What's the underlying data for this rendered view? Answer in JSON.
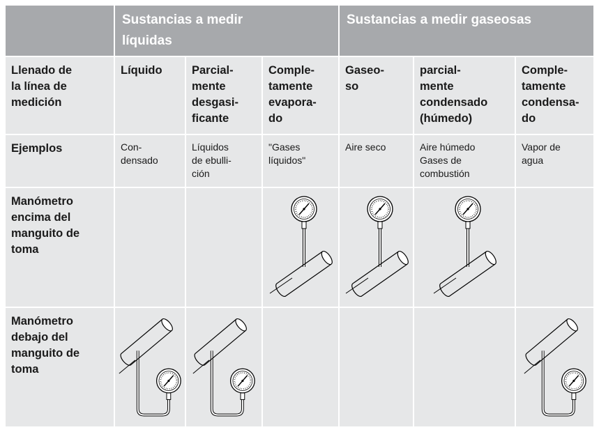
{
  "table": {
    "header": [
      "Sustancias a medir\nlíquidas",
      "Sustancias a medir gaseosas"
    ],
    "rows": [
      [
        "Llenado de\nla línea de\nmedición",
        "Líquido",
        "Parcial-\nmente\ndesgasi-\nficante",
        "Comple-\ntamente\nevapora-\ndo",
        "Gaseo-\nso",
        "parcial-\nmente\ncondensado\n(húmedo)",
        "Comple-\ntamente\ncondensa-\ndo"
      ],
      [
        "Ejemplos",
        "Con-\ndensado",
        "Líquidos\nde ebulli-\nción",
        "\"Gases\nlíquidos\"",
        "Aire seco",
        "Aire húmedo\nGases de\ncombustión",
        "Vapor de\nagua"
      ],
      [
        "Manómetro\nencima del\nmanguito de\ntoma"
      ],
      [
        "Manómetro\ndebajo del\nmanguito de\ntoma"
      ]
    ]
  }
}
